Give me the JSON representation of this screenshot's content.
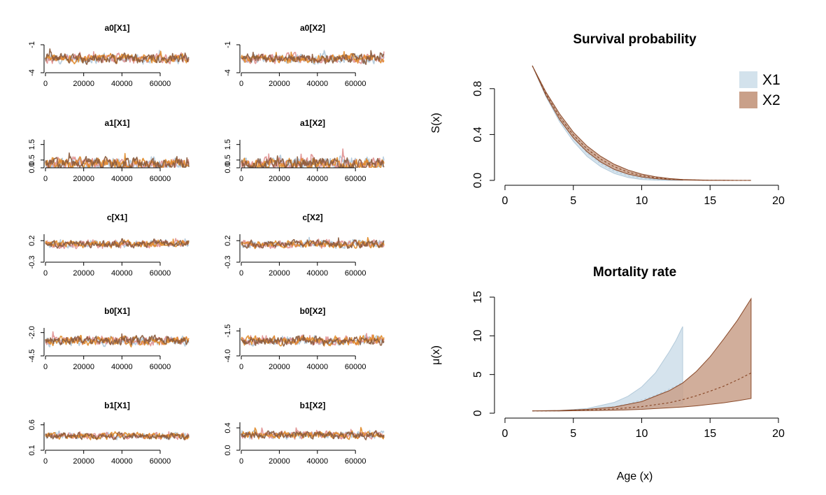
{
  "chart_data": [
    {
      "type": "line",
      "title": "a0[X1]",
      "x_ticks": [
        0,
        20000,
        40000,
        60000
      ],
      "xlim": [
        0,
        75000
      ],
      "y_ticks": [
        "-1",
        "-4"
      ],
      "ylim": [
        -4,
        -1
      ],
      "series": [
        {
          "color": "#aac4d8",
          "level": -2.5,
          "spread": 0.45
        },
        {
          "color": "#e09090",
          "level": -2.5,
          "spread": 0.45
        },
        {
          "color": "#e08a28",
          "level": -2.5,
          "spread": 0.45
        },
        {
          "color": "#8a5a3c",
          "level": -2.5,
          "spread": 0.45
        }
      ]
    },
    {
      "type": "line",
      "title": "a0[X2]",
      "x_ticks": [
        0,
        20000,
        40000,
        60000
      ],
      "xlim": [
        0,
        75000
      ],
      "y_ticks": [
        "-1",
        "-4"
      ],
      "ylim": [
        -4,
        -1
      ],
      "series": [
        {
          "color": "#aac4d8",
          "level": -2.5,
          "spread": 0.45
        },
        {
          "color": "#e09090",
          "level": -2.5,
          "spread": 0.45
        },
        {
          "color": "#e08a28",
          "level": -2.5,
          "spread": 0.45
        },
        {
          "color": "#8a5a3c",
          "level": -2.5,
          "spread": 0.45
        }
      ]
    },
    {
      "type": "line",
      "title": "a1[X1]",
      "x_ticks": [
        0,
        20000,
        40000,
        60000
      ],
      "xlim": [
        0,
        75000
      ],
      "y_ticks": [
        "0.0",
        "0.5",
        "1.5"
      ],
      "ylim": [
        0,
        1.8
      ],
      "series": [
        {
          "color": "#aac4d8",
          "level": 0.25,
          "spread": 0.35
        },
        {
          "color": "#e09090",
          "level": 0.25,
          "spread": 0.35
        },
        {
          "color": "#e08a28",
          "level": 0.25,
          "spread": 0.35
        },
        {
          "color": "#8a5a3c",
          "level": 0.25,
          "spread": 0.35
        }
      ]
    },
    {
      "type": "line",
      "title": "a1[X2]",
      "x_ticks": [
        0,
        20000,
        40000,
        60000
      ],
      "xlim": [
        0,
        75000
      ],
      "y_ticks": [
        "0.0",
        "0.5",
        "1.5"
      ],
      "ylim": [
        0,
        1.8
      ],
      "series": [
        {
          "color": "#aac4d8",
          "level": 0.25,
          "spread": 0.35
        },
        {
          "color": "#e09090",
          "level": 0.25,
          "spread": 0.35
        },
        {
          "color": "#e08a28",
          "level": 0.25,
          "spread": 0.35
        },
        {
          "color": "#8a5a3c",
          "level": 0.25,
          "spread": 0.35
        }
      ]
    },
    {
      "type": "line",
      "title": "c[X1]",
      "x_ticks": [
        0,
        20000,
        40000,
        60000
      ],
      "xlim": [
        0,
        75000
      ],
      "y_ticks": [
        "0.2",
        "-0.3"
      ],
      "ylim": [
        -0.3,
        0.35
      ],
      "series": [
        {
          "color": "#aac4d8",
          "level": 0.12,
          "spread": 0.08
        },
        {
          "color": "#e09090",
          "level": 0.12,
          "spread": 0.08
        },
        {
          "color": "#e08a28",
          "level": 0.12,
          "spread": 0.08
        },
        {
          "color": "#8a5a3c",
          "level": 0.12,
          "spread": 0.08
        }
      ]
    },
    {
      "type": "line",
      "title": "c[X2]",
      "x_ticks": [
        0,
        20000,
        40000,
        60000
      ],
      "xlim": [
        0,
        75000
      ],
      "y_ticks": [
        "0.2",
        "-0.3"
      ],
      "ylim": [
        -0.3,
        0.35
      ],
      "series": [
        {
          "color": "#aac4d8",
          "level": 0.12,
          "spread": 0.08
        },
        {
          "color": "#e09090",
          "level": 0.12,
          "spread": 0.08
        },
        {
          "color": "#e08a28",
          "level": 0.12,
          "spread": 0.08
        },
        {
          "color": "#8a5a3c",
          "level": 0.12,
          "spread": 0.08
        }
      ]
    },
    {
      "type": "line",
      "title": "b0[X1]",
      "x_ticks": [
        0,
        20000,
        40000,
        60000
      ],
      "xlim": [
        0,
        75000
      ],
      "y_ticks": [
        "-2.0",
        "-4.5"
      ],
      "ylim": [
        -4.5,
        -1.5
      ],
      "series": [
        {
          "color": "#aac4d8",
          "level": -2.9,
          "spread": 0.45
        },
        {
          "color": "#e09090",
          "level": -2.9,
          "spread": 0.45
        },
        {
          "color": "#e08a28",
          "level": -2.9,
          "spread": 0.45
        },
        {
          "color": "#8a5a3c",
          "level": -2.9,
          "spread": 0.45
        }
      ]
    },
    {
      "type": "line",
      "title": "b0[X2]",
      "x_ticks": [
        0,
        20000,
        40000,
        60000
      ],
      "xlim": [
        0,
        75000
      ],
      "y_ticks": [
        "-1.5",
        "-4.0"
      ],
      "ylim": [
        -4.0,
        -1.2
      ],
      "series": [
        {
          "color": "#aac4d8",
          "level": -2.5,
          "spread": 0.4
        },
        {
          "color": "#e09090",
          "level": -2.5,
          "spread": 0.4
        },
        {
          "color": "#e08a28",
          "level": -2.5,
          "spread": 0.4
        },
        {
          "color": "#8a5a3c",
          "level": -2.5,
          "spread": 0.4
        }
      ]
    },
    {
      "type": "line",
      "title": "b1[X1]",
      "x_ticks": [
        0,
        20000,
        40000,
        60000
      ],
      "xlim": [
        0,
        75000
      ],
      "y_ticks": [
        "0.6",
        "0.1"
      ],
      "ylim": [
        0.1,
        0.65
      ],
      "series": [
        {
          "color": "#aac4d8",
          "level": 0.38,
          "spread": 0.06
        },
        {
          "color": "#e09090",
          "level": 0.38,
          "spread": 0.06
        },
        {
          "color": "#e08a28",
          "level": 0.38,
          "spread": 0.06
        },
        {
          "color": "#8a5a3c",
          "level": 0.38,
          "spread": 0.06
        }
      ]
    },
    {
      "type": "line",
      "title": "b1[X2]",
      "x_ticks": [
        0,
        20000,
        40000,
        60000
      ],
      "xlim": [
        0,
        75000
      ],
      "y_ticks": [
        "0.0",
        "0.4"
      ],
      "ylim": [
        0,
        0.5
      ],
      "series": [
        {
          "color": "#aac4d8",
          "level": 0.27,
          "spread": 0.06
        },
        {
          "color": "#e09090",
          "level": 0.27,
          "spread": 0.06
        },
        {
          "color": "#e08a28",
          "level": 0.27,
          "spread": 0.06
        },
        {
          "color": "#8a5a3c",
          "level": 0.27,
          "spread": 0.06
        }
      ]
    },
    {
      "type": "area",
      "title": "Survival probability",
      "xlabel": "",
      "ylabel": "S(x)",
      "xlim": [
        0,
        20
      ],
      "ylim": [
        0,
        1
      ],
      "x_ticks": [
        0,
        5,
        10,
        15,
        20
      ],
      "y_ticks": [
        0.0,
        0.4,
        0.8
      ],
      "legend_position": "top-right",
      "series": [
        {
          "name": "X1",
          "color": "#d3e2ec",
          "line_color": "#b3cada",
          "x": [
            2,
            3,
            4,
            5,
            6,
            7,
            8,
            9,
            10,
            11,
            12,
            13
          ],
          "lower": [
            1.0,
            0.73,
            0.51,
            0.34,
            0.21,
            0.12,
            0.06,
            0.025,
            0.008,
            0.002,
            0.0,
            0.0
          ],
          "upper": [
            1.0,
            0.76,
            0.56,
            0.4,
            0.27,
            0.17,
            0.1,
            0.055,
            0.028,
            0.012,
            0.005,
            0.002
          ],
          "mean": [
            1.0,
            0.745,
            0.535,
            0.37,
            0.24,
            0.145,
            0.08,
            0.04,
            0.018,
            0.007,
            0.002,
            0.001
          ]
        },
        {
          "name": "X2",
          "color": "#c9a089",
          "line_color": "#8a4a2a",
          "x": [
            2,
            3,
            4,
            5,
            6,
            7,
            8,
            9,
            10,
            11,
            12,
            13,
            14,
            15,
            16,
            17,
            18
          ],
          "lower": [
            1.0,
            0.74,
            0.53,
            0.37,
            0.25,
            0.16,
            0.095,
            0.055,
            0.03,
            0.015,
            0.007,
            0.003,
            0.001,
            0.0,
            0.0,
            0.0,
            0.0
          ],
          "upper": [
            1.0,
            0.77,
            0.58,
            0.42,
            0.3,
            0.21,
            0.14,
            0.09,
            0.055,
            0.032,
            0.017,
            0.008,
            0.004,
            0.002,
            0.001,
            0.0,
            0.0
          ],
          "mean": [
            1.0,
            0.755,
            0.555,
            0.395,
            0.275,
            0.185,
            0.118,
            0.072,
            0.042,
            0.023,
            0.012,
            0.006,
            0.003,
            0.001,
            0.0,
            0.0,
            0.0
          ]
        }
      ]
    },
    {
      "type": "area",
      "title": "Mortality rate",
      "xlabel": "Age (x)",
      "ylabel": "μ(x)",
      "xlim": [
        0,
        20
      ],
      "ylim": [
        0,
        15
      ],
      "x_ticks": [
        0,
        5,
        10,
        15,
        20
      ],
      "y_ticks": [
        0,
        5,
        10,
        15
      ],
      "series": [
        {
          "name": "X1",
          "color": "#d3e2ec",
          "line_color": "#b3cada",
          "x": [
            2,
            4,
            6,
            8,
            9,
            10,
            11,
            12,
            12.5,
            13
          ],
          "lower": [
            0.3,
            0.3,
            0.35,
            0.45,
            0.55,
            0.65,
            0.8,
            1.0,
            1.1,
            1.2
          ],
          "upper": [
            0.3,
            0.35,
            0.6,
            1.4,
            2.2,
            3.4,
            5.2,
            7.9,
            9.4,
            11.2
          ],
          "mean": [
            0.3,
            0.32,
            0.45,
            0.85,
            1.2,
            1.7,
            2.3,
            3.1,
            3.5,
            4.0
          ]
        },
        {
          "name": "X2",
          "color": "#c9a089",
          "line_color": "#8a4a2a",
          "x": [
            2,
            4,
            6,
            8,
            10,
            12,
            13,
            14,
            15,
            16,
            17,
            18
          ],
          "lower": [
            0.3,
            0.3,
            0.33,
            0.38,
            0.5,
            0.7,
            0.8,
            0.95,
            1.15,
            1.35,
            1.6,
            1.9
          ],
          "upper": [
            0.3,
            0.35,
            0.5,
            0.8,
            1.5,
            2.9,
            3.9,
            5.4,
            7.3,
            9.6,
            12.0,
            14.8
          ],
          "mean": [
            0.3,
            0.32,
            0.4,
            0.55,
            0.85,
            1.35,
            1.75,
            2.25,
            2.85,
            3.5,
            4.3,
            5.2
          ]
        }
      ]
    }
  ]
}
